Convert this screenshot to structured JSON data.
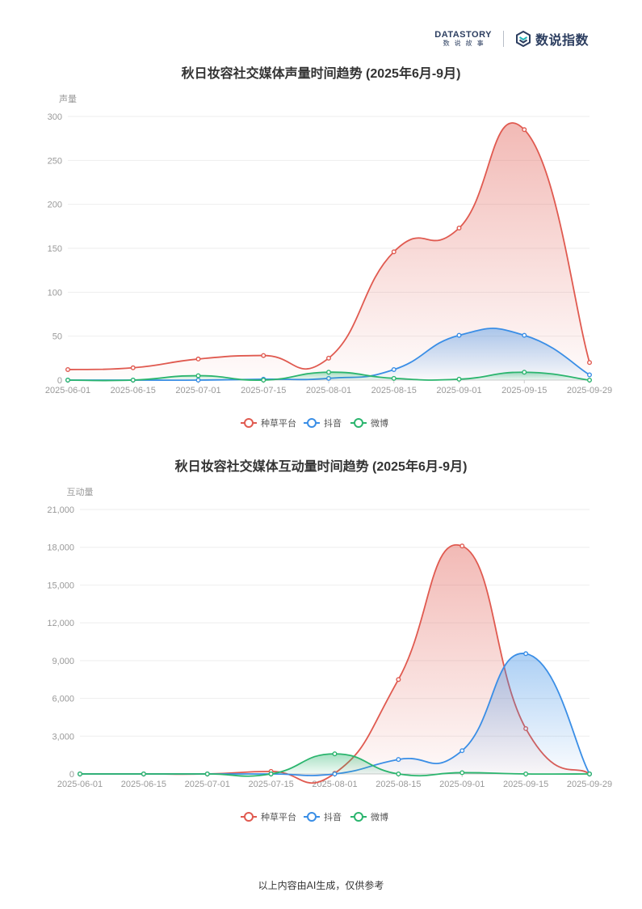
{
  "header": {
    "datastory_en": "DATASTORY",
    "datastory_cn": "数说故事",
    "dsi_label": "数说指数"
  },
  "footer": {
    "text": "以上内容由AI生成，仅供参考"
  },
  "colors": {
    "zhongcao": "#e05a50",
    "douyin": "#3a8ee6",
    "weibo": "#2bb56e",
    "axis_text": "#999999",
    "grid": "#eeeeee"
  },
  "chart_data": [
    {
      "type": "line",
      "title": "秋日妆容社交媒体声量时间趋势 (2025年6月-9月)",
      "ylabel": "声量",
      "xlabel": "",
      "ylim": [
        0,
        300
      ],
      "yticks": [
        "0",
        "50",
        "100",
        "150",
        "200",
        "250",
        "300"
      ],
      "categories": [
        "2025-06-01",
        "2025-06-15",
        "2025-07-01",
        "2025-07-15",
        "2025-08-01",
        "2025-08-15",
        "2025-09-01",
        "2025-09-15",
        "2025-09-29"
      ],
      "smooth": true,
      "area": true,
      "grid": true,
      "legend_position": "bottom",
      "series": [
        {
          "name": "种草平台",
          "color": "#e05a50",
          "values": [
            12,
            14,
            24,
            28,
            25,
            146,
            173,
            285,
            20
          ]
        },
        {
          "name": "抖音",
          "color": "#3a8ee6",
          "values": [
            0,
            0,
            0,
            1,
            2,
            12,
            51,
            51,
            6
          ]
        },
        {
          "name": "微博",
          "color": "#2bb56e",
          "values": [
            0,
            0,
            5,
            0,
            9,
            2,
            1,
            9,
            0
          ]
        }
      ]
    },
    {
      "type": "line",
      "title": "秋日妆容社交媒体互动量时间趋势 (2025年6月-9月)",
      "ylabel": "互动量",
      "xlabel": "",
      "ylim": [
        0,
        21000
      ],
      "yticks": [
        "0",
        "3,000",
        "6,000",
        "9,000",
        "12,000",
        "15,000",
        "18,000",
        "21,000"
      ],
      "categories": [
        "2025-06-01",
        "2025-06-15",
        "2025-07-01",
        "2025-07-15",
        "2025-08-01",
        "2025-08-15",
        "2025-09-01",
        "2025-09-15",
        "2025-09-29"
      ],
      "smooth": true,
      "area": true,
      "grid": true,
      "legend_position": "bottom",
      "series": [
        {
          "name": "种草平台",
          "color": "#e05a50",
          "values": [
            0,
            0,
            0,
            200,
            50,
            7500,
            18100,
            3600,
            0
          ]
        },
        {
          "name": "抖音",
          "color": "#3a8ee6",
          "values": [
            0,
            0,
            0,
            0,
            0,
            1150,
            1850,
            9550,
            0
          ]
        },
        {
          "name": "微博",
          "color": "#2bb56e",
          "values": [
            0,
            0,
            0,
            0,
            1600,
            0,
            100,
            0,
            0
          ]
        }
      ]
    }
  ]
}
